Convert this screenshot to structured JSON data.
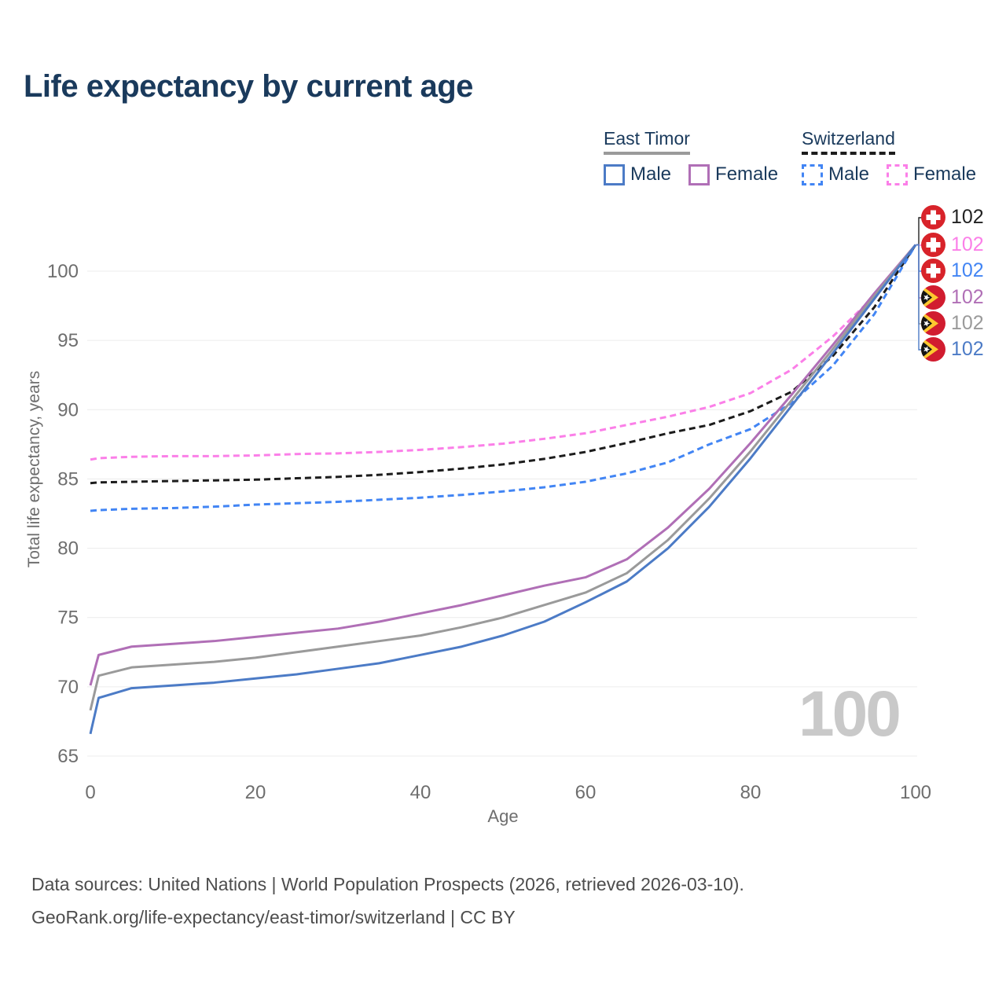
{
  "title": "Life expectancy by current age",
  "watermark": "100",
  "legend": {
    "groups": [
      {
        "label": "East Timor",
        "line_style": "solid",
        "underline_color": "#9a9a9a",
        "items": [
          {
            "label": "Male",
            "color": "#4c7bc6"
          },
          {
            "label": "Female",
            "color": "#b06fb6"
          }
        ]
      },
      {
        "label": "Switzerland",
        "line_style": "dashed",
        "underline_color": "#1c1c1c",
        "items": [
          {
            "label": "Male",
            "color": "#4285f4"
          },
          {
            "label": "Female",
            "color": "#fb7fe8"
          }
        ]
      }
    ]
  },
  "end_labels": [
    {
      "series": "Switzerland",
      "flag": "switzerland-flag",
      "value": "102",
      "color": "#222222"
    },
    {
      "series": "Switzerland Female",
      "flag": "switzerland-flag",
      "value": "102",
      "color": "#fb7fe8"
    },
    {
      "series": "Switzerland Male",
      "flag": "switzerland-flag",
      "value": "102",
      "color": "#4285f4"
    },
    {
      "series": "East Timor Female",
      "flag": "east-timor-flag",
      "value": "102",
      "color": "#b06fb6"
    },
    {
      "series": "East Timor",
      "flag": "east-timor-flag",
      "value": "102",
      "color": "#9a9a9a"
    },
    {
      "series": "East Timor Male",
      "flag": "east-timor-flag",
      "value": "102",
      "color": "#4c7bc6"
    }
  ],
  "footer": {
    "line1": "Data sources: United Nations | World Population Prospects (2026, retrieved 2026-03-10).",
    "line2": "GeoRank.org/life-expectancy/east-timor/switzerland | CC BY"
  },
  "chart_data": {
    "type": "line",
    "title": "Life expectancy by current age",
    "xlabel": "Age",
    "ylabel": "Total life expectancy, years",
    "xlim": [
      0,
      100
    ],
    "ylim": [
      64,
      103
    ],
    "xticks": [
      0,
      20,
      40,
      60,
      80,
      100
    ],
    "yticks": [
      65,
      70,
      75,
      80,
      85,
      90,
      95,
      100
    ],
    "grid": "horizontal-only",
    "legend_position": "top-right",
    "x": [
      0,
      1,
      5,
      10,
      15,
      20,
      25,
      30,
      35,
      40,
      45,
      50,
      55,
      60,
      65,
      70,
      75,
      80,
      85,
      90,
      95,
      100
    ],
    "series": [
      {
        "name": "Switzerland Female",
        "country": "Switzerland",
        "sex": "Female",
        "style": "dashed",
        "color": "#fb7fe8",
        "end_value": 102,
        "values": [
          86.4,
          86.5,
          86.6,
          86.65,
          86.65,
          86.7,
          86.8,
          86.85,
          86.95,
          87.1,
          87.3,
          87.55,
          87.9,
          88.3,
          88.9,
          89.5,
          90.2,
          91.2,
          92.9,
          95.3,
          98.2,
          101.9
        ]
      },
      {
        "name": "Switzerland",
        "country": "Switzerland",
        "sex": "Both",
        "style": "dashed",
        "color": "#1c1c1c",
        "end_value": 102,
        "values": [
          84.7,
          84.75,
          84.8,
          84.85,
          84.9,
          84.95,
          85.05,
          85.15,
          85.3,
          85.5,
          85.75,
          86.05,
          86.45,
          86.95,
          87.6,
          88.3,
          88.9,
          89.9,
          91.3,
          93.9,
          97.4,
          101.9
        ]
      },
      {
        "name": "Switzerland Male",
        "country": "Switzerland",
        "sex": "Male",
        "style": "dashed",
        "color": "#4285f4",
        "end_value": 102,
        "values": [
          82.7,
          82.75,
          82.85,
          82.9,
          83.0,
          83.15,
          83.25,
          83.35,
          83.5,
          83.65,
          83.85,
          84.1,
          84.4,
          84.8,
          85.4,
          86.2,
          87.5,
          88.6,
          90.5,
          93.2,
          96.9,
          101.9
        ]
      },
      {
        "name": "East Timor Female",
        "country": "East Timor",
        "sex": "Female",
        "style": "solid",
        "color": "#b06fb6",
        "end_value": 102,
        "values": [
          70.1,
          72.3,
          72.9,
          73.1,
          73.3,
          73.6,
          73.9,
          74.2,
          74.7,
          75.3,
          75.9,
          76.6,
          77.3,
          77.9,
          79.2,
          81.5,
          84.3,
          87.6,
          91.1,
          94.7,
          98.4,
          101.9
        ]
      },
      {
        "name": "East Timor",
        "country": "East Timor",
        "sex": "Both",
        "style": "solid",
        "color": "#9a9a9a",
        "end_value": 102,
        "values": [
          68.3,
          70.8,
          71.4,
          71.6,
          71.8,
          72.1,
          72.5,
          72.9,
          73.3,
          73.7,
          74.3,
          75.0,
          75.9,
          76.8,
          78.2,
          80.6,
          83.6,
          87.0,
          90.7,
          94.4,
          98.2,
          101.9
        ]
      },
      {
        "name": "East Timor Male",
        "country": "East Timor",
        "sex": "Male",
        "style": "solid",
        "color": "#4c7bc6",
        "end_value": 102,
        "values": [
          66.6,
          69.2,
          69.9,
          70.1,
          70.3,
          70.6,
          70.9,
          71.3,
          71.7,
          72.3,
          72.9,
          73.7,
          74.7,
          76.1,
          77.6,
          80.0,
          83.0,
          86.5,
          90.3,
          94.1,
          98.0,
          101.9
        ]
      }
    ]
  }
}
